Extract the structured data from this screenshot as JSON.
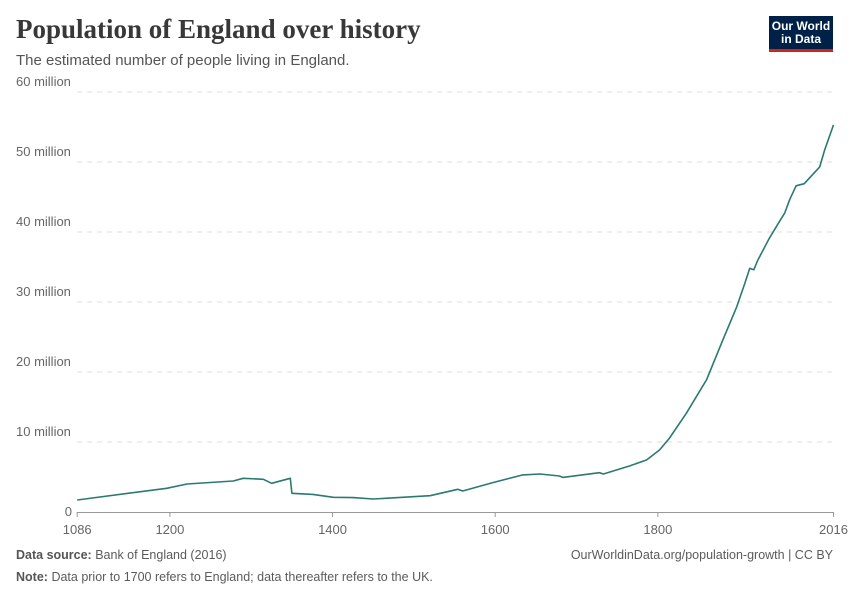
{
  "header": {
    "title": "Population of England over history",
    "subtitle": "The estimated number of people living in England.",
    "logo_text": "Our World in Data"
  },
  "footer": {
    "source_label": "Data source:",
    "source_value": "Bank of England (2016)",
    "url_license": "OurWorldinData.org/population-growth | CC BY",
    "note_label": "Note:",
    "note_value": "Data prior to 1700 refers to England; data thereafter refers to the UK."
  },
  "colors": {
    "line": "#2b7a6f",
    "logo_bg": "#002147",
    "logo_bar": "#ce261e",
    "grid": "#dddddd"
  },
  "chart_data": {
    "type": "line",
    "title": "Population of England over history",
    "subtitle": "The estimated number of people living in England.",
    "xlim": [
      1086,
      2016
    ],
    "ylim": [
      0,
      60000000
    ],
    "grid": "horizontal dashed",
    "x_ticks": [
      1086,
      1200,
      1400,
      1600,
      1800,
      2016
    ],
    "y_ticks": [
      {
        "value": 0,
        "label": "0"
      },
      {
        "value": 10000000,
        "label": "10 million"
      },
      {
        "value": 20000000,
        "label": "20 million"
      },
      {
        "value": 30000000,
        "label": "30 million"
      },
      {
        "value": 40000000,
        "label": "40 million"
      },
      {
        "value": 50000000,
        "label": "50 million"
      },
      {
        "value": 60000000,
        "label": "60 million"
      }
    ],
    "series": [
      {
        "x": [
          1086,
          1196,
          1221,
          1278,
          1290,
          1315,
          1325,
          1348,
          1350,
          1376,
          1401,
          1425,
          1450,
          1520,
          1554,
          1560,
          1597,
          1634,
          1655,
          1679,
          1683,
          1728,
          1733,
          1765,
          1786,
          1802,
          1814,
          1835,
          1860,
          1880,
          1897,
          1907,
          1913,
          1918,
          1923,
          1937,
          1948,
          1956,
          1962,
          1970,
          1980,
          1999,
          2005,
          2016
        ],
        "y": [
          1710000,
          3380000,
          4000000,
          4430000,
          4810000,
          4670000,
          4100000,
          4810000,
          2670000,
          2520000,
          2100000,
          2050000,
          1860000,
          2330000,
          3240000,
          3000000,
          4200000,
          5300000,
          5430000,
          5140000,
          4950000,
          5620000,
          5430000,
          6570000,
          7430000,
          8860000,
          10500000,
          14100000,
          18900000,
          24600000,
          29300000,
          32700000,
          34800000,
          34600000,
          36000000,
          39100000,
          41200000,
          42700000,
          44600000,
          46600000,
          46900000,
          49300000,
          51700000,
          55300000
        ]
      }
    ]
  }
}
